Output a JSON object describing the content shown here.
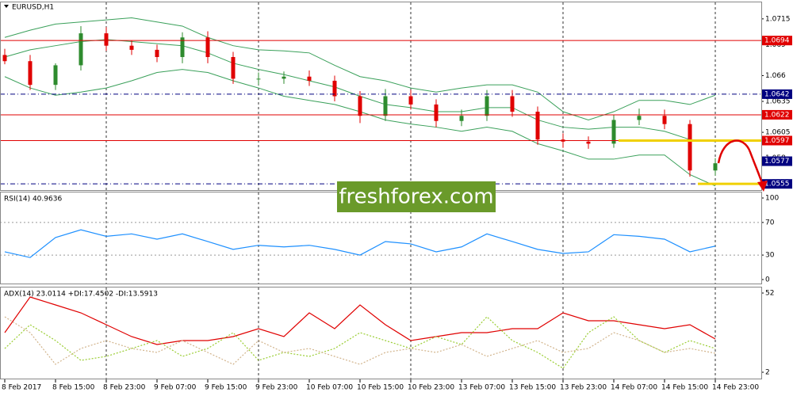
{
  "chart_data": [
    {
      "type": "candlestick",
      "title": "EURUSD,H1",
      "categories": [
        "8 Feb 2017",
        null,
        "8 Feb 15:00",
        null,
        "8 Feb 23:00",
        null,
        "9 Feb 07:00",
        null,
        "9 Feb 15:00",
        null,
        "9 Feb 23:00",
        null,
        "10 Feb 07:00",
        null,
        "10 Feb 15:00",
        null,
        "10 Feb 23:00",
        null,
        "13 Feb 07:00",
        null,
        "13 Feb 15:00",
        null,
        "13 Feb 23:00",
        null,
        "14 Feb 07:00",
        null,
        "14 Feb 15:00",
        null,
        "14 Feb 23:00"
      ],
      "open": [
        1.068,
        1.0674,
        1.0651,
        1.067,
        1.0701,
        1.0689,
        1.0685,
        1.0678,
        1.0697,
        1.0678,
        1.0657,
        1.0657,
        1.0659,
        1.0655,
        1.064,
        1.0621,
        1.064,
        1.0632,
        1.0616,
        1.0621,
        1.064,
        1.0625,
        1.0598,
        1.0596,
        1.0594,
        1.0617,
        1.0621,
        1.0613,
        1.0568
      ],
      "high": [
        1.0686,
        1.068,
        1.0672,
        1.0708,
        1.0707,
        1.0694,
        1.069,
        1.0702,
        1.0703,
        1.0683,
        1.0663,
        1.0664,
        1.0665,
        1.066,
        1.0645,
        1.0647,
        1.0646,
        1.0637,
        1.0627,
        1.0646,
        1.0646,
        1.063,
        1.0604,
        1.0601,
        1.0622,
        1.0628,
        1.0627,
        1.0617,
        1.058
      ],
      "low": [
        1.0671,
        1.0646,
        1.0646,
        1.0665,
        1.0684,
        1.068,
        1.0673,
        1.0672,
        1.0672,
        1.0652,
        1.0651,
        1.0652,
        1.065,
        1.0635,
        1.0614,
        1.0616,
        1.0627,
        1.061,
        1.0611,
        1.0616,
        1.062,
        1.0593,
        1.059,
        1.0589,
        1.059,
        1.0612,
        1.0608,
        1.0562,
        1.0563
      ],
      "close": [
        1.0674,
        1.0651,
        1.067,
        1.0701,
        1.0689,
        1.0685,
        1.0678,
        1.0697,
        1.0678,
        1.0657,
        1.0657,
        1.0659,
        1.0655,
        1.064,
        1.0621,
        1.064,
        1.0632,
        1.0616,
        1.0621,
        1.064,
        1.0625,
        1.0598,
        1.0596,
        1.0594,
        1.0617,
        1.0621,
        1.0613,
        1.0568,
        1.0575
      ],
      "up_color": "#2e8b2e",
      "down_color": "#e00000",
      "series": [
        {
          "color": "#3aa05a",
          "values": [
            1.0697,
            1.0704,
            1.071,
            1.0712,
            1.0714,
            1.0716,
            1.0712,
            1.0708,
            1.0697,
            1.0689,
            1.0685,
            1.0684,
            1.0682,
            1.067,
            1.0659,
            1.0655,
            1.0648,
            1.0644,
            1.0648,
            1.0651,
            1.0651,
            1.0644,
            1.0625,
            1.0617,
            1.0625,
            1.0636,
            1.0636,
            1.0632,
            1.0641
          ]
        },
        {
          "color": "#3aa05a",
          "values": [
            1.0678,
            1.0685,
            1.0689,
            1.0693,
            1.0695,
            1.0693,
            1.0691,
            1.0689,
            1.0682,
            1.0672,
            1.0666,
            1.0661,
            1.0655,
            1.0649,
            1.064,
            1.0632,
            1.0629,
            1.0625,
            1.0625,
            1.0629,
            1.0629,
            1.0617,
            1.061,
            1.0608,
            1.061,
            1.061,
            1.0606,
            1.0598,
            1.0596
          ]
        },
        {
          "color": "#3aa05a",
          "values": [
            1.0659,
            1.0648,
            1.0641,
            1.0644,
            1.0648,
            1.0655,
            1.0663,
            1.0666,
            1.0663,
            1.0655,
            1.0648,
            1.064,
            1.0636,
            1.0632,
            1.0625,
            1.0617,
            1.0613,
            1.061,
            1.0606,
            1.061,
            1.0606,
            1.0594,
            1.0587,
            1.0579,
            1.0579,
            1.0583,
            1.0583,
            1.0564,
            1.0553
          ]
        }
      ],
      "ylim": [
        1.0549,
        1.0731
      ],
      "yticks": [
        1.0715,
        1.069,
        1.066,
        1.0635,
        1.0605,
        1.058
      ],
      "levels": [
        {
          "value": 1.0694,
          "color": "#e00000",
          "dashed": false
        },
        {
          "value": 1.0642,
          "color": "#000080",
          "dashed": true
        },
        {
          "value": 1.0622,
          "color": "#e00000",
          "dashed": false
        },
        {
          "value": 1.0597,
          "color": "#e00000",
          "dashed": false,
          "highlight": true
        },
        {
          "value": 1.0555,
          "color": "#000080",
          "dashed": true,
          "highlight": true
        }
      ],
      "price": 1.0577,
      "price_color": "#000080",
      "highlight_color": "#f0d000"
    },
    {
      "type": "line",
      "title": "RSI(14) 40.9636",
      "series": [
        {
          "color": "#1e90ff",
          "values": [
            34,
            27,
            51.5,
            61,
            53,
            56,
            49.5,
            56,
            46.6,
            37,
            42,
            40,
            42,
            37,
            30,
            46.6,
            43.7,
            34,
            40,
            56,
            46.6,
            37,
            32,
            34,
            55,
            53,
            49.5,
            34,
            41
          ]
        }
      ],
      "ylim": [
        -4.9,
        106.8
      ],
      "yticks": [
        100,
        70,
        30,
        0
      ]
    },
    {
      "type": "line",
      "title": "ADX(14) 23.0114 +DI:17.4502 -DI:13.5913",
      "series": [
        {
          "color": "#e00000",
          "dashed": false,
          "values": [
            27,
            49.5,
            44.5,
            39.5,
            32,
            24.5,
            19.5,
            22,
            22,
            24.5,
            29.5,
            24.5,
            39.5,
            29.5,
            44.5,
            32,
            22,
            24.5,
            27,
            27,
            29.5,
            29.5,
            39.5,
            34.5,
            34.5,
            32,
            29.5,
            32,
            23
          ]
        },
        {
          "color": "#9acd32",
          "dashed": true,
          "values": [
            17,
            32,
            22,
            9.5,
            12,
            17,
            22,
            12,
            17,
            27,
            9.5,
            14.5,
            12,
            17,
            27,
            22,
            17,
            24.5,
            19.5,
            37,
            22,
            14.5,
            4.5,
            27,
            37,
            22,
            14.5,
            22,
            17
          ]
        },
        {
          "color": "#d2b48c",
          "dashed": true,
          "values": [
            37,
            27,
            7,
            17,
            22,
            17,
            14.5,
            22,
            14.5,
            7,
            22,
            14.5,
            17,
            12,
            7,
            14.5,
            17,
            14.5,
            19.5,
            12,
            17,
            22,
            14.5,
            17,
            27,
            22,
            14.5,
            17,
            14
          ]
        }
      ],
      "ylim": [
        -2,
        55.5
      ],
      "yticks": [
        52,
        2
      ]
    }
  ],
  "watermark": "freshforex.com"
}
